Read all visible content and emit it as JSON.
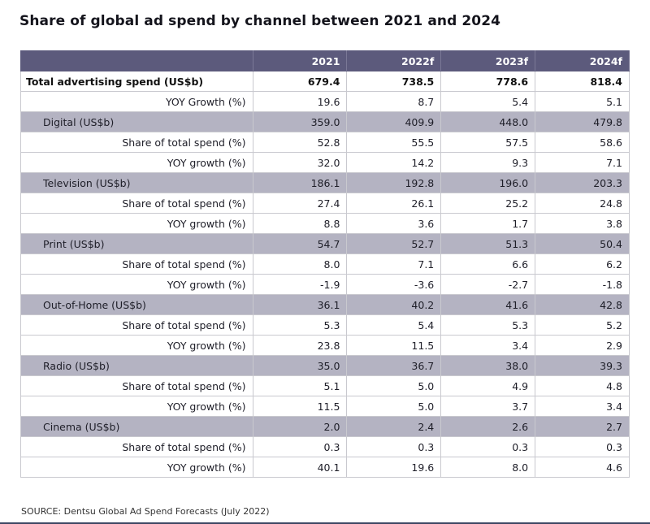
{
  "title": "Share of global ad spend by channel between 2021 and 2024",
  "source": "SOURCE: Dentsu Global Ad Spend Forecasts (July 2022)",
  "colors": {
    "header_bg": "#5c5a7c",
    "channel_row_bg": "#b4b3c2",
    "footer_line": "#3d4763"
  },
  "chart_data": {
    "type": "table",
    "title": "Share of global ad spend by channel between 2021 and 2024",
    "columns": [
      "",
      "2021",
      "2022f",
      "2023f",
      "2024f"
    ],
    "rows": [
      {
        "kind": "total",
        "label": "Total advertising spend (US$b)",
        "values": [
          "679.4",
          "738.5",
          "778.6",
          "818.4"
        ]
      },
      {
        "kind": "sub",
        "label": "YOY Growth (%)",
        "values": [
          "19.6",
          "8.7",
          "5.4",
          "5.1"
        ]
      },
      {
        "kind": "channel",
        "label": "Digital (US$b)",
        "values": [
          "359.0",
          "409.9",
          "448.0",
          "479.8"
        ]
      },
      {
        "kind": "sub",
        "label": "Share of total spend (%)",
        "values": [
          "52.8",
          "55.5",
          "57.5",
          "58.6"
        ]
      },
      {
        "kind": "sub",
        "label": "YOY growth (%)",
        "values": [
          "32.0",
          "14.2",
          "9.3",
          "7.1"
        ]
      },
      {
        "kind": "channel",
        "label": "Television (US$b)",
        "values": [
          "186.1",
          "192.8",
          "196.0",
          "203.3"
        ]
      },
      {
        "kind": "sub",
        "label": "Share of total spend (%)",
        "values": [
          "27.4",
          "26.1",
          "25.2",
          "24.8"
        ]
      },
      {
        "kind": "sub",
        "label": "YOY growth (%)",
        "values": [
          "8.8",
          "3.6",
          "1.7",
          "3.8"
        ]
      },
      {
        "kind": "channel",
        "label": "Print (US$b)",
        "values": [
          "54.7",
          "52.7",
          "51.3",
          "50.4"
        ]
      },
      {
        "kind": "sub",
        "label": "Share of total spend (%)",
        "values": [
          "8.0",
          "7.1",
          "6.6",
          "6.2"
        ]
      },
      {
        "kind": "sub",
        "label": "YOY growth (%)",
        "values": [
          "-1.9",
          "-3.6",
          "-2.7",
          "-1.8"
        ]
      },
      {
        "kind": "channel",
        "label": "Out-of-Home (US$b)",
        "values": [
          "36.1",
          "40.2",
          "41.6",
          "42.8"
        ]
      },
      {
        "kind": "sub",
        "label": "Share of total spend (%)",
        "values": [
          "5.3",
          "5.4",
          "5.3",
          "5.2"
        ]
      },
      {
        "kind": "sub",
        "label": "YOY growth (%)",
        "values": [
          "23.8",
          "11.5",
          "3.4",
          "2.9"
        ]
      },
      {
        "kind": "channel",
        "label": "Radio (US$b)",
        "values": [
          "35.0",
          "36.7",
          "38.0",
          "39.3"
        ]
      },
      {
        "kind": "sub",
        "label": "Share of total spend (%)",
        "values": [
          "5.1",
          "5.0",
          "4.9",
          "4.8"
        ]
      },
      {
        "kind": "sub",
        "label": "YOY growth (%)",
        "values": [
          "11.5",
          "5.0",
          "3.7",
          "3.4"
        ]
      },
      {
        "kind": "channel",
        "label": "Cinema (US$b)",
        "values": [
          "2.0",
          "2.4",
          "2.6",
          "2.7"
        ]
      },
      {
        "kind": "sub",
        "label": "Share of total spend (%)",
        "values": [
          "0.3",
          "0.3",
          "0.3",
          "0.3"
        ]
      },
      {
        "kind": "sub",
        "label": "YOY growth (%)",
        "values": [
          "40.1",
          "19.6",
          "8.0",
          "4.6"
        ]
      }
    ]
  }
}
